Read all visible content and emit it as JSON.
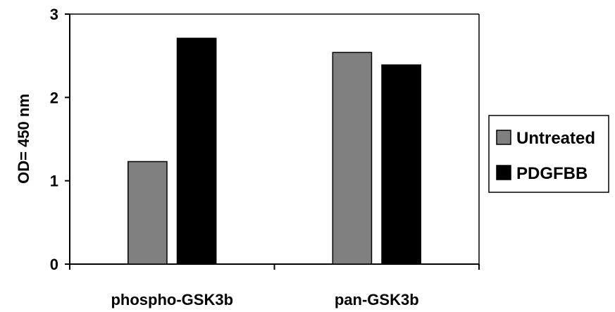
{
  "chart_data": {
    "type": "bar",
    "title": "",
    "xlabel": "",
    "ylabel": "OD= 450 nm",
    "ylim": [
      0,
      3
    ],
    "yticks": [
      "0",
      "1",
      "2",
      "3"
    ],
    "categories": [
      "phospho-GSK3b",
      "pan-GSK3b"
    ],
    "series": [
      {
        "name": "Untreated",
        "color": "#808080",
        "values": [
          1.23,
          2.54
        ]
      },
      {
        "name": "PDGFBB",
        "color": "#000000",
        "values": [
          2.71,
          2.39
        ]
      }
    ],
    "grid": false,
    "legend": "right"
  }
}
